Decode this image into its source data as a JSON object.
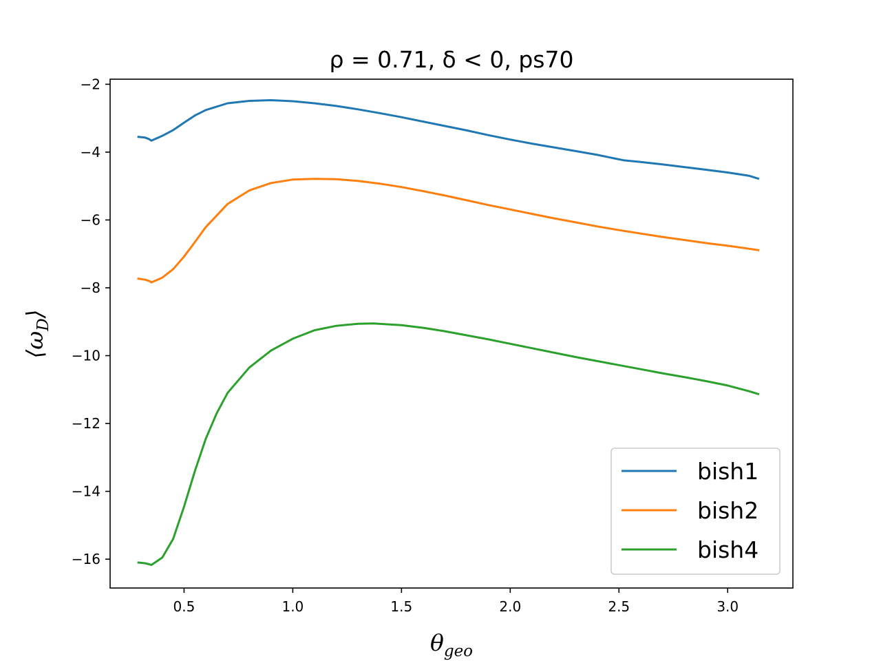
{
  "chart_data": {
    "type": "line",
    "title": "ρ = 0.71, δ < 0, ps70",
    "xlabel": "θ",
    "xlabel_sub": "geo",
    "ylabel": "⟨ω",
    "ylabel_sub": "D",
    "ylabel_close": "⟩",
    "xlim": [
      0.16,
      3.3
    ],
    "ylim": [
      -16.85,
      -1.85
    ],
    "xticks": [
      0.5,
      1.0,
      1.5,
      2.0,
      2.5,
      3.0
    ],
    "xtick_labels": [
      "0.5",
      "1.0",
      "1.5",
      "2.0",
      "2.5",
      "3.0"
    ],
    "yticks": [
      -2,
      -4,
      -6,
      -8,
      -10,
      -12,
      -14,
      -16
    ],
    "ytick_labels": [
      "−2",
      "−4",
      "−6",
      "−8",
      "−10",
      "−12",
      "−14",
      "−16"
    ],
    "legend_position": "lower-right",
    "grid": false,
    "series": [
      {
        "name": "bish1",
        "color": "#1f77b4",
        "x": [
          0.29,
          0.32,
          0.34,
          0.35,
          0.4,
          0.45,
          0.5,
          0.55,
          0.6,
          0.7,
          0.8,
          0.9,
          1.0,
          1.1,
          1.2,
          1.3,
          1.4,
          1.5,
          1.6,
          1.7,
          1.8,
          1.9,
          2.0,
          2.1,
          2.2,
          2.3,
          2.4,
          2.52,
          2.6,
          2.7,
          2.8,
          2.9,
          3.0,
          3.1,
          3.14
        ],
        "y": [
          -3.55,
          -3.57,
          -3.62,
          -3.66,
          -3.52,
          -3.35,
          -3.13,
          -2.92,
          -2.76,
          -2.56,
          -2.49,
          -2.47,
          -2.5,
          -2.56,
          -2.64,
          -2.74,
          -2.85,
          -2.97,
          -3.1,
          -3.23,
          -3.36,
          -3.5,
          -3.63,
          -3.75,
          -3.86,
          -3.97,
          -4.08,
          -4.24,
          -4.29,
          -4.36,
          -4.44,
          -4.52,
          -4.6,
          -4.7,
          -4.78
        ]
      },
      {
        "name": "bish2",
        "color": "#ff7f0e",
        "x": [
          0.29,
          0.32,
          0.34,
          0.35,
          0.4,
          0.45,
          0.5,
          0.55,
          0.6,
          0.7,
          0.8,
          0.9,
          1.0,
          1.1,
          1.2,
          1.3,
          1.4,
          1.5,
          1.6,
          1.7,
          1.8,
          1.9,
          2.0,
          2.1,
          2.2,
          2.3,
          2.4,
          2.5,
          2.6,
          2.7,
          2.8,
          2.9,
          3.0,
          3.1,
          3.14
        ],
        "y": [
          -7.73,
          -7.76,
          -7.8,
          -7.84,
          -7.7,
          -7.45,
          -7.08,
          -6.65,
          -6.21,
          -5.53,
          -5.13,
          -4.91,
          -4.81,
          -4.79,
          -4.8,
          -4.85,
          -4.93,
          -5.03,
          -5.15,
          -5.28,
          -5.42,
          -5.56,
          -5.69,
          -5.82,
          -5.95,
          -6.07,
          -6.19,
          -6.3,
          -6.4,
          -6.5,
          -6.59,
          -6.68,
          -6.76,
          -6.85,
          -6.89
        ]
      },
      {
        "name": "bish4",
        "color": "#2ca02c",
        "x": [
          0.29,
          0.32,
          0.34,
          0.35,
          0.4,
          0.45,
          0.5,
          0.55,
          0.6,
          0.65,
          0.7,
          0.8,
          0.9,
          1.0,
          1.1,
          1.2,
          1.3,
          1.37,
          1.5,
          1.6,
          1.7,
          1.8,
          1.9,
          2.0,
          2.1,
          2.2,
          2.3,
          2.4,
          2.5,
          2.6,
          2.7,
          2.8,
          2.9,
          3.0,
          3.1,
          3.14
        ],
        "y": [
          -16.1,
          -16.12,
          -16.15,
          -16.17,
          -15.95,
          -15.4,
          -14.45,
          -13.4,
          -12.45,
          -11.7,
          -11.1,
          -10.35,
          -9.85,
          -9.5,
          -9.25,
          -9.12,
          -9.06,
          -9.05,
          -9.1,
          -9.18,
          -9.28,
          -9.4,
          -9.52,
          -9.65,
          -9.78,
          -9.91,
          -10.04,
          -10.16,
          -10.28,
          -10.4,
          -10.52,
          -10.63,
          -10.75,
          -10.88,
          -11.05,
          -11.13
        ]
      }
    ]
  }
}
